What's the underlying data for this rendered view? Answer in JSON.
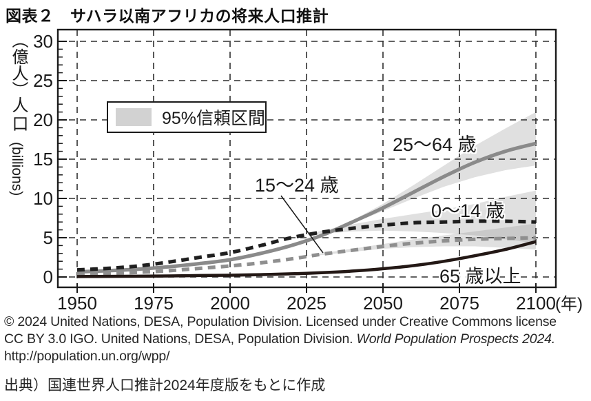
{
  "title": "図表２　サハラ以南アフリカの将来人口推計",
  "y_axis": {
    "unit_jp": "（億人）",
    "label_jp": "人口",
    "unit_en": "(billions)"
  },
  "legend": {
    "label": "95%信頼区間"
  },
  "annotations": {
    "group_25_64": "25〜64 歳",
    "group_15_24": "15〜24 歳",
    "group_0_14": "0〜14 歳",
    "group_65_plus": "65 歳以上"
  },
  "footer": {
    "line1": "© 2024 United Nations, DESA, Population Division. Licensed under Creative Commons license",
    "line2_regular": "CC BY 3.0 IGO. United Nations, DESA, Population Division. ",
    "line2_italic": "World Population Prospects 2024.",
    "line3": "http://population.un.org/wpp/",
    "source": "出典）国連世界人口推計2024年度版をもとに作成"
  },
  "chart_data": {
    "type": "line",
    "title": "サハラ以南アフリカの将来人口推計",
    "xlabel": "年",
    "ylabel": "人口（億人）(billions)",
    "xlim": [
      1950,
      2100
    ],
    "ylim": [
      0,
      30
    ],
    "x_ticks": [
      1950,
      1975,
      2000,
      2025,
      2050,
      2075,
      2100
    ],
    "x_tick_suffix": "(年)",
    "y_ticks": [
      0,
      5,
      10,
      15,
      20,
      25,
      30
    ],
    "grid": "dashed gridlines at every major tick, both axes",
    "legend_position": "upper-left boxed legend for 95% confidence band",
    "band_label": "95%信頼区間",
    "band_color": "#8c8c8c",
    "x": [
      1950,
      1960,
      1970,
      1980,
      1990,
      2000,
      2010,
      2020,
      2030,
      2040,
      2050,
      2060,
      2070,
      2080,
      2090,
      2100
    ],
    "series": [
      {
        "name": "25〜64歳",
        "line": "solid",
        "color": "#8a8a8a",
        "values": [
          0.65,
          0.8,
          1.0,
          1.3,
          1.7,
          2.2,
          3.0,
          4.0,
          5.3,
          7.0,
          8.8,
          10.8,
          12.8,
          14.6,
          16.0,
          17.0
        ],
        "ci95": {
          "x": [
            2025,
            2030,
            2040,
            2050,
            2060,
            2070,
            2080,
            2090,
            2100
          ],
          "lo": [
            4.65,
            5.2,
            6.8,
            8.4,
            10.0,
            11.5,
            12.7,
            13.6,
            14.2
          ],
          "hi": [
            4.65,
            5.4,
            7.2,
            9.3,
            11.7,
            14.2,
            16.7,
            18.9,
            21.0
          ]
        }
      },
      {
        "name": "0〜14歳",
        "line": "dashed",
        "color": "#1f1f1f",
        "values": [
          0.9,
          1.1,
          1.4,
          1.9,
          2.5,
          3.1,
          4.0,
          5.0,
          5.7,
          6.2,
          6.6,
          6.9,
          7.0,
          7.1,
          7.1,
          7.0
        ],
        "ci95": {
          "x": [
            2025,
            2030,
            2040,
            2050,
            2060,
            2070,
            2080,
            2090,
            2100
          ],
          "lo": [
            5.35,
            5.5,
            5.8,
            5.9,
            5.8,
            5.6,
            5.3,
            4.8,
            4.3
          ],
          "hi": [
            5.35,
            5.9,
            6.7,
            7.4,
            8.0,
            8.6,
            9.3,
            10.2,
            11.0
          ]
        }
      },
      {
        "name": "15〜24歳",
        "line": "dashed",
        "color": "#8f8f8f",
        "values": [
          0.35,
          0.45,
          0.6,
          0.8,
          1.1,
          1.4,
          1.8,
          2.3,
          2.9,
          3.4,
          3.9,
          4.3,
          4.6,
          4.8,
          4.9,
          5.0
        ],
        "ci95": {
          "x": [
            2025,
            2030,
            2040,
            2050,
            2060,
            2070,
            2080,
            2090,
            2100
          ],
          "lo": [
            2.65,
            2.8,
            3.2,
            3.6,
            3.8,
            3.9,
            3.9,
            3.7,
            3.5
          ],
          "hi": [
            2.65,
            3.0,
            3.6,
            4.2,
            4.8,
            5.3,
            5.8,
            6.3,
            6.8
          ]
        }
      },
      {
        "name": "65歳以上",
        "line": "solid",
        "color": "#231815",
        "values": [
          0.06,
          0.08,
          0.1,
          0.13,
          0.18,
          0.22,
          0.3,
          0.4,
          0.55,
          0.75,
          1.05,
          1.45,
          2.0,
          2.7,
          3.5,
          4.5
        ]
      }
    ]
  }
}
